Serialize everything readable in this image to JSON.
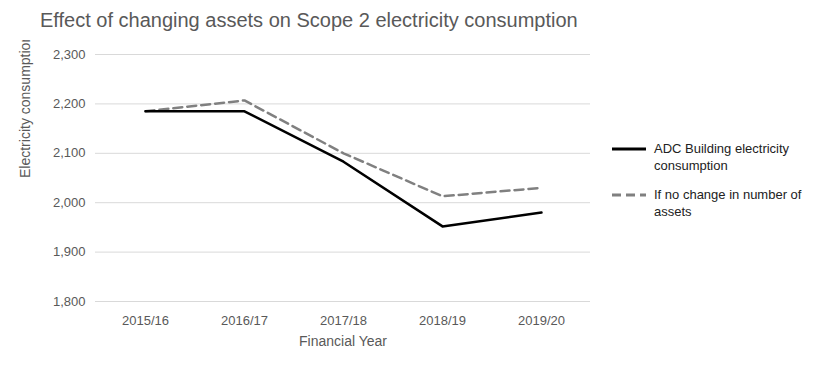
{
  "chart_data": {
    "type": "line",
    "title": "Effect of changing assets on Scope 2 electricity consumption",
    "x_label": "Financial Year",
    "y_label": "Electricity consumption (MWh)",
    "categories": [
      "2015/16",
      "2016/17",
      "2017/18",
      "2018/19",
      "2019/20"
    ],
    "series": [
      {
        "name": "ADC Building electricity consumption",
        "color": "#000000",
        "line_style": "solid",
        "values": [
          2185,
          2185,
          2083,
          1952,
          1980
        ]
      },
      {
        "name": "If no change in number of assets",
        "color": "#808080",
        "line_style": "dashed",
        "values": [
          2185,
          2207,
          2100,
          2013,
          2030
        ]
      }
    ],
    "ylim": [
      1800,
      2300
    ],
    "yticks": [
      {
        "value": 1800,
        "label": "1,800"
      },
      {
        "value": 1900,
        "label": "1,900"
      },
      {
        "value": 2000,
        "label": "2,000"
      },
      {
        "value": 2100,
        "label": "2,100"
      },
      {
        "value": 2200,
        "label": "2,200"
      },
      {
        "value": 2300,
        "label": "2,300"
      }
    ],
    "grid": true,
    "legend": "right"
  }
}
